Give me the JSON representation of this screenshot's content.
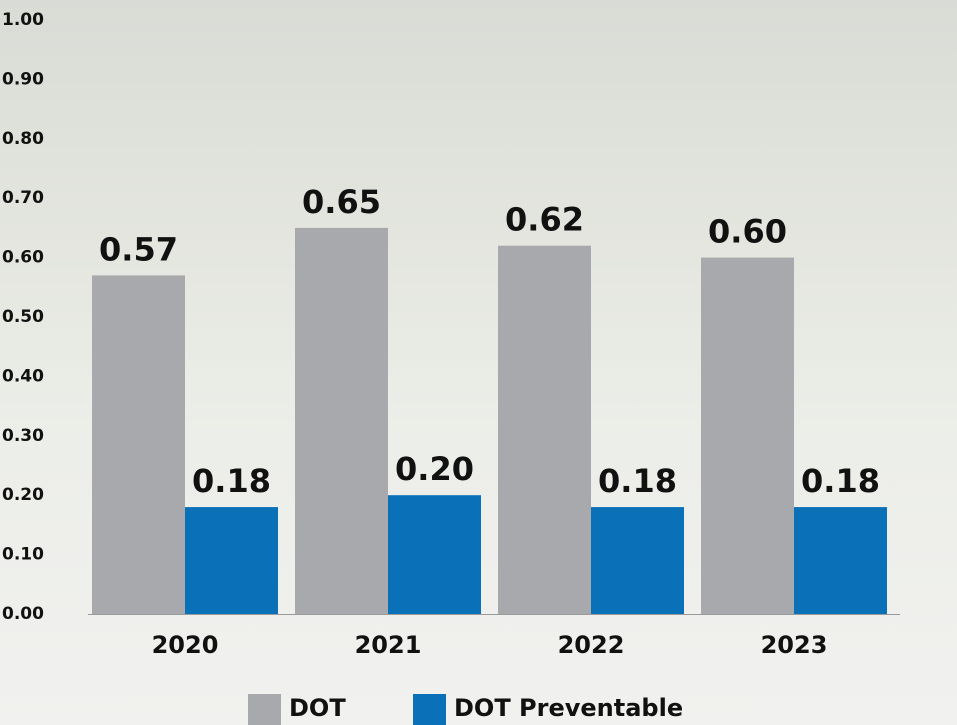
{
  "chart_data": {
    "type": "bar",
    "categories": [
      "2020",
      "2021",
      "2022",
      "2023"
    ],
    "series": [
      {
        "name": "DOT",
        "color": "#a7a9ac",
        "values": [
          0.57,
          0.65,
          0.62,
          0.6
        ],
        "value_labels": [
          "0.57",
          "0.65",
          "0.62",
          "0.60"
        ]
      },
      {
        "name": "DOT Preventable",
        "color": "#0a70b8",
        "values": [
          0.18,
          0.2,
          0.18,
          0.18
        ],
        "value_labels": [
          "0.18",
          "0.20",
          "0.18",
          "0.18"
        ]
      }
    ],
    "ylim": [
      0,
      1
    ],
    "yticks": [
      {
        "value": 0,
        "label": "0.00"
      },
      {
        "value": 0.1,
        "label": "0.10"
      },
      {
        "value": 0.2,
        "label": "0.20"
      },
      {
        "value": 0.3,
        "label": "0.30"
      },
      {
        "value": 0.4,
        "label": "0.40"
      },
      {
        "value": 0.5,
        "label": "0.50"
      },
      {
        "value": 0.6,
        "label": "0.60"
      },
      {
        "value": 0.7,
        "label": "0.70"
      },
      {
        "value": 0.8,
        "label": "0.80"
      },
      {
        "value": 0.9,
        "label": "0.90"
      },
      {
        "value": 1,
        "label": "1.00"
      }
    ],
    "grid": false,
    "legend": "bottom"
  }
}
